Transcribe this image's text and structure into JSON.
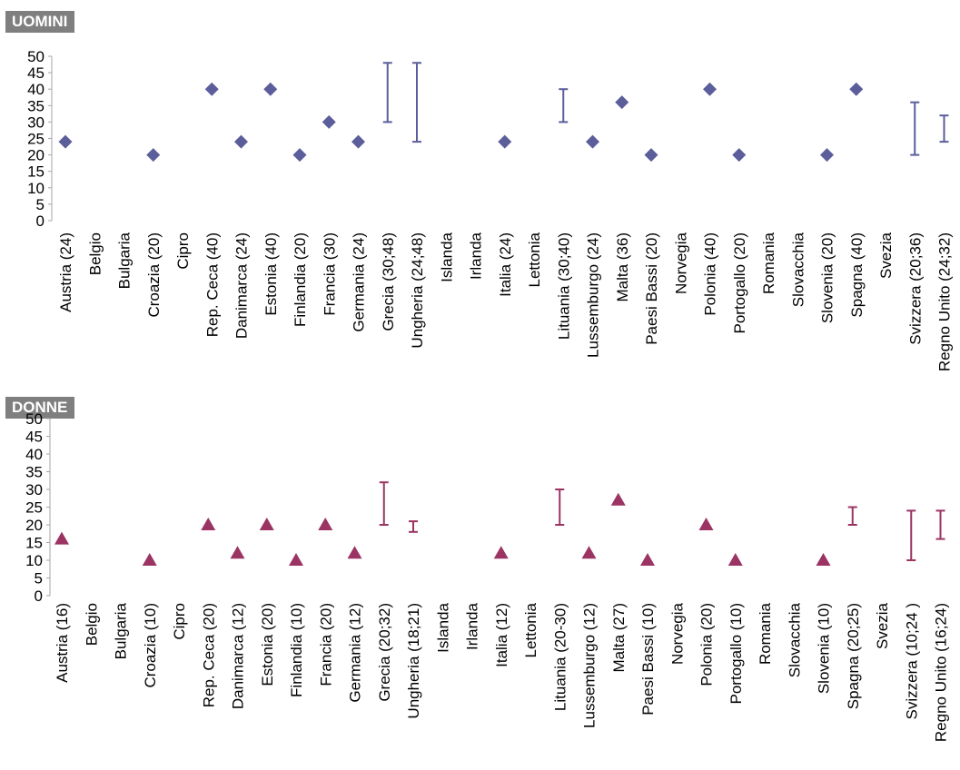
{
  "chart_data": [
    {
      "type": "scatter",
      "title": "UOMINI",
      "ylim": [
        0,
        50
      ],
      "yticks": [
        "0",
        "5",
        "10",
        "15",
        "20",
        "25",
        "30",
        "35",
        "40",
        "45",
        "50"
      ],
      "color": "#5b5e9a",
      "marker": "diamond",
      "categories": [
        "Austria (24)",
        "Belgio",
        "Bulgaria",
        "Croazia (20)",
        "Cipro",
        "Rep. Ceca (40)",
        "Danimarca (24)",
        "Estonia (40)",
        "Finlandia (20)",
        "Francia (30)",
        "Germania (24)",
        "Grecia (30;48)",
        "Ungheria (24;48)",
        "Islanda",
        "Irlanda",
        "Italia (24)",
        "Lettonia",
        "Lituania (30;40)",
        "Lussemburgo (24)",
        "Malta (36)",
        "Paesi Bassi (20)",
        "Norvegia",
        "Polonia (40)",
        "Portogallo (20)",
        "Romania",
        "Slovacchia",
        "Slovenia (20)",
        "Spagna (40)",
        "Svezia",
        "Svizzera (20;36)",
        "Regno Unito (24;32)"
      ],
      "points": [
        24,
        null,
        null,
        20,
        null,
        40,
        24,
        40,
        20,
        30,
        24,
        null,
        null,
        null,
        null,
        24,
        null,
        null,
        24,
        36,
        20,
        null,
        40,
        20,
        null,
        null,
        20,
        40,
        null,
        null,
        null
      ],
      "ranges": [
        null,
        null,
        null,
        null,
        null,
        null,
        null,
        null,
        null,
        null,
        null,
        [
          30,
          48
        ],
        [
          24,
          48
        ],
        null,
        null,
        null,
        null,
        [
          30,
          40
        ],
        null,
        null,
        null,
        null,
        null,
        null,
        null,
        null,
        null,
        null,
        null,
        [
          20,
          36
        ],
        [
          24,
          32
        ]
      ]
    },
    {
      "type": "scatter",
      "title": "DONNE",
      "ylim": [
        0,
        50
      ],
      "yticks": [
        "0",
        "5",
        "10",
        "15",
        "20",
        "25",
        "30",
        "35",
        "40",
        "45",
        "50"
      ],
      "color": "#9b3363",
      "marker": "triangle",
      "categories": [
        "Austria (16)",
        "Belgio",
        "Bulgaria",
        "Croazia (10)",
        "Cipro",
        "Rep. Ceca (20)",
        "Danimarca (12)",
        "Estonia (20)",
        "Finlandia (10)",
        "Francia (20)",
        "Germania (12)",
        "Grecia (20;32)",
        "Ungheria (18;21)",
        "Islanda",
        "Irlanda",
        "Italia (12)",
        "Lettonia",
        "Lituania (20-30)",
        "Lussemburgo (12)",
        "Malta (27)",
        "Paesi Bassi (10)",
        "Norvegia",
        "Polonia (20)",
        "Portogallo (10)",
        "Romania",
        "Slovacchia",
        "Slovenia (10)",
        "Spagna (20;25)",
        "Svezia",
        "Svizzera (10;24 )",
        "Regno Unito (16;24)"
      ],
      "points": [
        16,
        null,
        null,
        10,
        null,
        20,
        12,
        20,
        10,
        20,
        12,
        null,
        null,
        null,
        null,
        12,
        null,
        null,
        12,
        27,
        10,
        null,
        20,
        10,
        null,
        null,
        10,
        null,
        null,
        null,
        null
      ],
      "ranges": [
        null,
        null,
        null,
        null,
        null,
        null,
        null,
        null,
        null,
        null,
        null,
        [
          20,
          32
        ],
        [
          18,
          21
        ],
        null,
        null,
        null,
        null,
        [
          20,
          30
        ],
        null,
        null,
        null,
        null,
        null,
        null,
        null,
        null,
        null,
        [
          20,
          25
        ],
        null,
        [
          10,
          24
        ],
        [
          16,
          24
        ]
      ]
    }
  ]
}
